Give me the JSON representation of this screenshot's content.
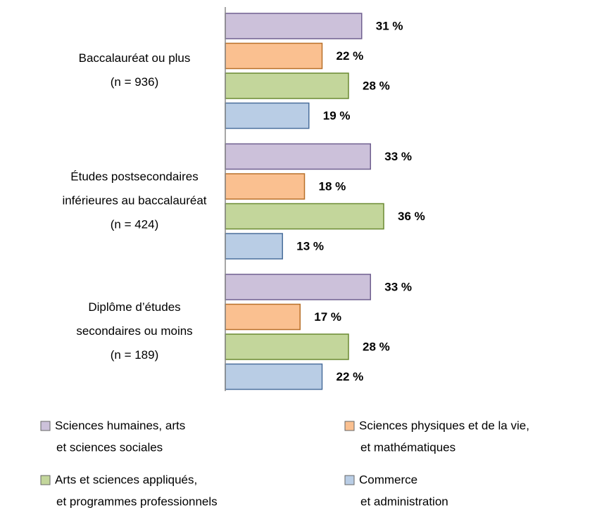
{
  "chart_data": {
    "type": "hbar",
    "categories": [
      [
        "Baccalauréat ou plus",
        "(n =  936)"
      ],
      [
        "Études postsecondaires",
        "inférieures au baccalauréat",
        "(n =  424)"
      ],
      [
        "Diplôme d’études",
        "secondaires ou moins",
        "(n =  189)"
      ]
    ],
    "series": [
      {
        "name": [
          "Sciences humaines, arts",
          "et sciences sociales"
        ],
        "color": "#ccc1da",
        "stroke": "#6f5f8f",
        "values": [
          31,
          33,
          33
        ],
        "value_labels": [
          "31 %",
          "33 %",
          "33 %"
        ]
      },
      {
        "name": [
          "Sciences physiques et de la vie,",
          "et mathématiques"
        ],
        "color": "#fac090",
        "stroke": "#b8702a",
        "values": [
          22,
          18,
          17
        ],
        "value_labels": [
          "22 %",
          "18 %",
          "17 %"
        ]
      },
      {
        "name": [
          "Arts et sciences appliqués,",
          "et programmes professionnels"
        ],
        "color": "#c3d69b",
        "stroke": "#6b8a32",
        "values": [
          28,
          36,
          28
        ],
        "value_labels": [
          "28 %",
          "36 %",
          "28 %"
        ]
      },
      {
        "name": [
          "Commerce",
          "et administration"
        ],
        "color": "#b9cde5",
        "stroke": "#4a6f9c",
        "values": [
          19,
          13,
          22
        ],
        "value_labels": [
          "19 %",
          "13 %",
          "22 %"
        ]
      }
    ],
    "xlim": [
      0,
      40
    ]
  }
}
